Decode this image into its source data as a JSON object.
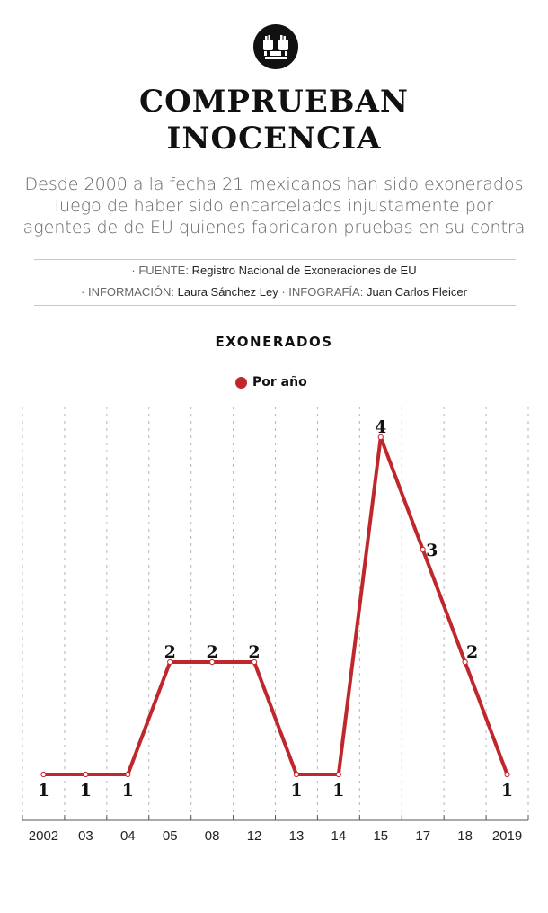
{
  "headline": {
    "line1": "COMPRUEBAN",
    "line2": "INOCENCIA"
  },
  "dek": {
    "line1": "Desde 2000 a la fecha 21 mexicanos han sido exonerados",
    "line2": "luego de haber sido encarcelados injustamente por",
    "line3": "agentes de de EU quienes fabricaron pruebas en su contra"
  },
  "credits": {
    "source_key": "· FUENTE:",
    "source_val": "Registro Nacional de Exoneraciones de EU",
    "info_key": "· INFORMACIÓN:",
    "info_val": "Laura Sánchez Ley",
    "graphic_key": "· INFOGRAFÍA:",
    "graphic_val": "Juan Carlos Fleicer"
  },
  "logo_icon": "raised-fists-icon",
  "chart_data": {
    "type": "line",
    "title": "EXONERADOS",
    "categories": [
      "2002",
      "03",
      "04",
      "05",
      "08",
      "12",
      "13",
      "14",
      "15",
      "17",
      "18",
      "2019"
    ],
    "series": [
      {
        "name": "Por año",
        "values": [
          1,
          1,
          1,
          2,
          2,
          2,
          1,
          1,
          4,
          3,
          2,
          1
        ]
      }
    ],
    "ylim": [
      0,
      4.5
    ],
    "grid": "vertical dotted",
    "legend": "top-center",
    "color": "#c0272d"
  }
}
